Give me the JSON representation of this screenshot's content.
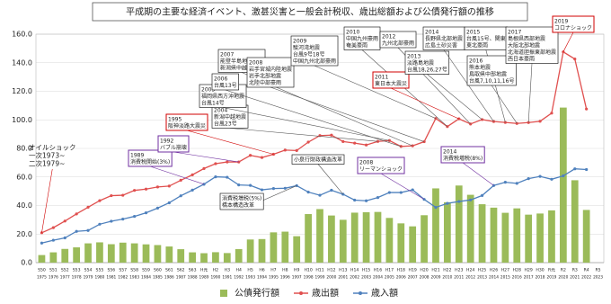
{
  "chart_data": {
    "type": "bar-line",
    "title": "平成期の主要な経済イベント、激甚災害と一般会計税収、歳出総額および公債発行額の推移",
    "categories": [
      "S50",
      "S51",
      "S52",
      "S53",
      "S54",
      "S55",
      "S56",
      "S57",
      "S58",
      "S59",
      "S60",
      "S61",
      "S62",
      "S63",
      "H元",
      "H2",
      "H3",
      "H4",
      "H5",
      "H6",
      "H7",
      "H8",
      "H9",
      "H10",
      "H11",
      "H12",
      "H13",
      "H14",
      "H15",
      "H16",
      "H17",
      "H18",
      "H19",
      "H20",
      "H21",
      "H22",
      "H23",
      "H24",
      "H25",
      "H26",
      "H27",
      "H28",
      "H29",
      "H30",
      "R元",
      "R2",
      "R3",
      "R4",
      "R5"
    ],
    "years": [
      1975,
      1976,
      1977,
      1978,
      1979,
      1980,
      1981,
      1982,
      1983,
      1984,
      1985,
      1986,
      1987,
      1988,
      1989,
      1990,
      1991,
      1992,
      1993,
      1994,
      1995,
      1996,
      1997,
      1998,
      1999,
      2000,
      2001,
      2002,
      2003,
      2004,
      2005,
      2006,
      2007,
      2008,
      2009,
      2010,
      2011,
      2012,
      2013,
      2014,
      2015,
      2016,
      2017,
      2018,
      2019,
      2020,
      2021,
      2022,
      2023
    ],
    "series": [
      {
        "name": "公債発行額",
        "kind": "bar",
        "color": "#9bbb59",
        "values": [
          5.3,
          7.2,
          9.6,
          10.7,
          13.5,
          14.2,
          12.9,
          14.0,
          13.5,
          12.8,
          12.3,
          11.3,
          9.4,
          7.2,
          6.6,
          7.3,
          6.7,
          9.5,
          16.2,
          16.5,
          21.2,
          21.7,
          18.5,
          34.0,
          37.5,
          33.0,
          30.0,
          35.0,
          35.3,
          35.5,
          31.3,
          27.5,
          25.4,
          33.2,
          52.0,
          42.3,
          54.0,
          47.5,
          40.9,
          38.5,
          34.9,
          38.0,
          33.6,
          34.4,
          36.6,
          108.6,
          57.7,
          36.9,
          null
        ]
      },
      {
        "name": "歳出額",
        "kind": "line",
        "color": "#e0504f",
        "values": [
          20.9,
          24.5,
          29.1,
          34.1,
          38.8,
          43.4,
          46.9,
          47.2,
          50.6,
          51.5,
          53.0,
          53.6,
          57.7,
          61.5,
          65.9,
          69.3,
          70.5,
          70.5,
          75.1,
          73.6,
          75.9,
          78.8,
          78.5,
          84.4,
          89.0,
          89.3,
          84.8,
          83.7,
          82.4,
          84.9,
          85.5,
          81.4,
          81.8,
          84.7,
          101.0,
          95.3,
          100.7,
          97.1,
          100.2,
          98.8,
          98.2,
          97.5,
          98.1,
          99.0,
          104.7,
          147.6,
          142.6,
          107.6,
          null
        ]
      },
      {
        "name": "歳入額",
        "kind": "line",
        "color": "#4f81bd",
        "values": [
          13.7,
          15.7,
          17.3,
          21.9,
          22.5,
          26.9,
          29.0,
          30.5,
          32.4,
          34.9,
          38.2,
          41.9,
          46.8,
          50.8,
          54.9,
          60.1,
          59.8,
          54.4,
          54.1,
          51.0,
          51.9,
          52.1,
          53.9,
          49.4,
          47.2,
          50.7,
          47.9,
          43.8,
          43.3,
          45.6,
          49.1,
          49.1,
          51.0,
          44.3,
          38.7,
          41.5,
          42.8,
          43.9,
          47.0,
          54.0,
          56.3,
          55.5,
          58.8,
          60.4,
          58.4,
          60.8,
          65.7,
          65.2,
          null
        ]
      }
    ],
    "ylim": [
      0,
      160
    ],
    "yticks": [
      {
        "value": 0,
        "label": "0.0"
      },
      {
        "value": 20,
        "label": "20.0"
      },
      {
        "value": 40,
        "label": "40.0"
      },
      {
        "value": 60,
        "label": "60.0"
      },
      {
        "value": 80,
        "label": "80.0"
      },
      {
        "value": 100,
        "label": "100.0"
      },
      {
        "value": 120,
        "label": "120.0"
      },
      {
        "value": 140,
        "label": "140.0"
      },
      {
        "value": 160,
        "label": "160.0"
      }
    ],
    "grid": true,
    "legend": "bottom",
    "annotations": [
      {
        "lines": [
          "オイルショック",
          "一次1973~",
          "二次1979~"
        ],
        "color": "#d00000",
        "box": false
      },
      {
        "lines": [
          "1989",
          "消費税開始(3%)"
        ],
        "color": "#7030a0",
        "box": true
      },
      {
        "lines": [
          "1992",
          "バブル崩壊"
        ],
        "color": "#7030a0",
        "box": true
      },
      {
        "lines": [
          "1995",
          "阪神淡路大震災"
        ],
        "color": "#d00000",
        "box": true
      },
      {
        "lines": [
          "2004",
          "新潟中越地震",
          "台風23号"
        ],
        "color": "#000000",
        "box": true
      },
      {
        "lines": [
          "2005",
          "福岡県西方沖地震",
          "台風14号"
        ],
        "color": "#000000",
        "box": true
      },
      {
        "lines": [
          "2006",
          "台風13号"
        ],
        "color": "#000000",
        "box": true
      },
      {
        "lines": [
          "2007",
          "能登半島地震",
          "新潟県中越沖地震"
        ],
        "color": "#000000",
        "box": true
      },
      {
        "lines": [
          "2008",
          "岩手宮城内陸地震",
          "岩手北部地震",
          "北陸中部豪雨"
        ],
        "color": "#000000",
        "box": true
      },
      {
        "lines": [
          "2009",
          "駿河湾地震",
          "台風9号18号",
          "中国九州北部豪雨"
        ],
        "color": "#000000",
        "box": true
      },
      {
        "lines": [
          "2010",
          "中国九州豪雨",
          "奄美豪雨"
        ],
        "color": "#000000",
        "box": true
      },
      {
        "lines": [
          "2011",
          "東日本大震災"
        ],
        "color": "#d00000",
        "box": true
      },
      {
        "lines": [
          "2012",
          "九州北部豪雨"
        ],
        "color": "#000000",
        "box": true
      },
      {
        "lines": [
          "2013",
          "淡路島地震",
          "台風18,26,27号"
        ],
        "color": "#000000",
        "box": true
      },
      {
        "lines": [
          "2014",
          "長野県北部地震",
          "広島土砂災害"
        ],
        "color": "#000000",
        "box": true
      },
      {
        "lines": [
          "2015",
          "台風15号、関東",
          "東北豪雨"
        ],
        "color": "#000000",
        "box": true
      },
      {
        "lines": [
          "2016",
          "熊本地震",
          "鳥取県中部地震",
          "台風7,10,11,16号"
        ],
        "color": "#000000",
        "box": true
      },
      {
        "lines": [
          "2017",
          "島根県西部地震",
          "大阪北部地震",
          "北海道胆振東部地震",
          "西日本豪雨"
        ],
        "color": "#000000",
        "box": true
      },
      {
        "lines": [
          "2019",
          "コロナショック"
        ],
        "color": "#d00000",
        "box": true
      },
      {
        "lines": [
          "2008",
          "リーマンショック"
        ],
        "color": "#7030a0",
        "box": true
      },
      {
        "lines": [
          "2014",
          "消費税増税(8%)"
        ],
        "color": "#7030a0",
        "box": true
      },
      {
        "lines": [
          "小泉行財政構造改革"
        ],
        "color": "#000000",
        "box": true
      },
      {
        "lines": [
          "消費税増税(5%)",
          "橋本構造改革"
        ],
        "color": "#000000",
        "box": true
      }
    ]
  }
}
